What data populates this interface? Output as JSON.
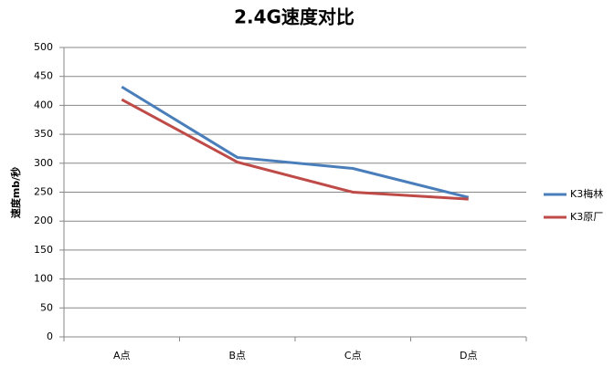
{
  "chart_data": {
    "type": "line",
    "title": "2.4G速度对比",
    "y_label": "速度mb/秒",
    "categories": [
      "A点",
      "B点",
      "C点",
      "D点"
    ],
    "series": [
      {
        "name": "K3梅林",
        "color": "#4a7ebb",
        "values": [
          432,
          310,
          291,
          241
        ]
      },
      {
        "name": "K3原厂",
        "color": "#be4b48",
        "values": [
          410,
          302,
          250,
          238
        ]
      }
    ],
    "ylim": [
      0,
      500
    ],
    "yticks": [
      0,
      50,
      100,
      150,
      200,
      250,
      300,
      350,
      400,
      450,
      500
    ],
    "grid": true,
    "legend": "right"
  }
}
